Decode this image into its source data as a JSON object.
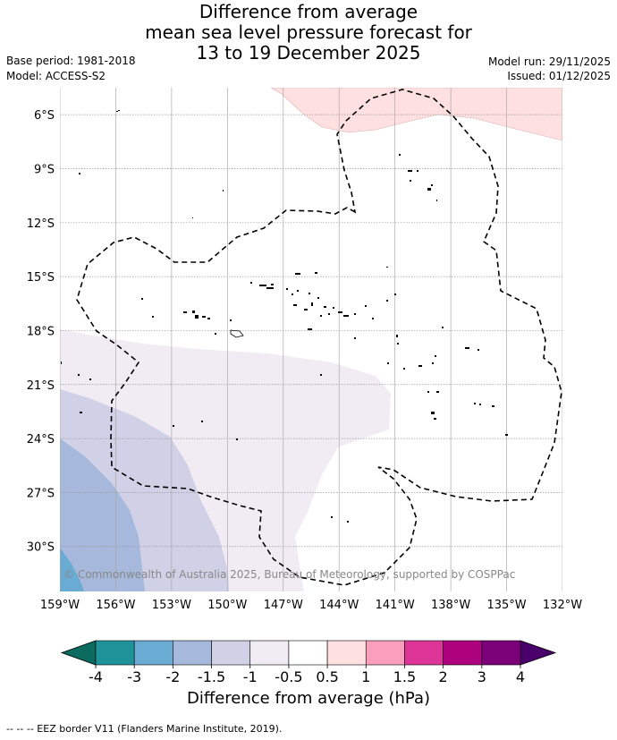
{
  "title": {
    "line1": "Difference from average",
    "line2": "mean sea level pressure forecast for",
    "line3": "13 to 19 December 2025"
  },
  "meta": {
    "base_period": "Base period: 1981-2018",
    "model": "Model: ACCESS-S2",
    "model_run": "Model run: 29/11/2025",
    "issued": "Issued: 01/12/2025"
  },
  "map": {
    "lon_range": [
      -159,
      -132
    ],
    "lat_range": [
      -32.5,
      -4.5
    ],
    "lat_ticks": [
      {
        "value": -6,
        "label": "6°S"
      },
      {
        "value": -9,
        "label": "9°S"
      },
      {
        "value": -12,
        "label": "12°S"
      },
      {
        "value": -15,
        "label": "15°S"
      },
      {
        "value": -18,
        "label": "18°S"
      },
      {
        "value": -21,
        "label": "21°S"
      },
      {
        "value": -24,
        "label": "24°S"
      },
      {
        "value": -27,
        "label": "27°S"
      },
      {
        "value": -30,
        "label": "30°S"
      }
    ],
    "lon_ticks": [
      {
        "value": -159,
        "label": "159°W"
      },
      {
        "value": -156,
        "label": "156°W"
      },
      {
        "value": -153,
        "label": "153°W"
      },
      {
        "value": -150,
        "label": "150°W"
      },
      {
        "value": -147,
        "label": "147°W"
      },
      {
        "value": -144,
        "label": "144°W"
      },
      {
        "value": -141,
        "label": "141°W"
      },
      {
        "value": -138,
        "label": "138°W"
      },
      {
        "value": -135,
        "label": "135°W"
      },
      {
        "value": -132,
        "label": "132°W"
      }
    ],
    "copyright": "© Commonwealth of Australia 2025, Bureau of Meteorology, supported by COSPPac"
  },
  "colorbar": {
    "title": "Difference from average (hPa)",
    "labels": [
      "-4",
      "-3",
      "-2",
      "-1.5",
      "-1",
      "-0.5",
      "0.5",
      "1",
      "1.5",
      "2",
      "3",
      "4"
    ],
    "colors": {
      "under": "#0b6b5e",
      "bins": [
        "#1f9399",
        "#6aabd4",
        "#a6b9dc",
        "#d0d1e6",
        "#f1ebf4",
        "#ffffff",
        "#fde0df",
        "#f99fbd",
        "#dd3497",
        "#ae017e",
        "#7a0177"
      ],
      "over": "#49006a"
    }
  },
  "footer": "--  --  -- EEZ border V11 (Flanders Marine Institute, 2019)."
}
